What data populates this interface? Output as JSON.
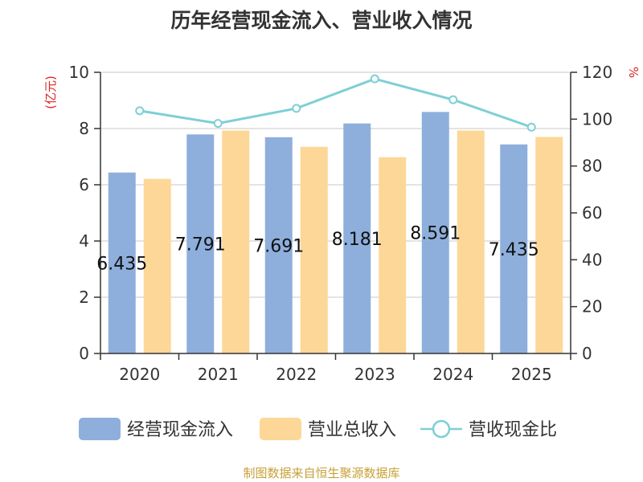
{
  "title": "历年经营现金流入、营业收入情况",
  "source": "制图数据来自恒生聚源数据库",
  "colors": {
    "cash_inflow": "#8eafdc",
    "revenue": "#fdd797",
    "ratio": "#7ecfd6",
    "unit": "#e02020",
    "grid": "#c8c8c8",
    "axis": "#333333"
  },
  "chart_data": {
    "type": "bar",
    "title": "历年经营现金流入、营业收入情况",
    "categories": [
      "2020",
      "2021",
      "2022",
      "2023",
      "2024",
      "2025"
    ],
    "left_axis": {
      "label": "(亿元)",
      "ylim": [
        0,
        10
      ],
      "ticks": [
        "0",
        "2",
        "4",
        "6",
        "8",
        "10"
      ]
    },
    "right_axis": {
      "label": "%",
      "ylim": [
        0,
        120
      ],
      "ticks": [
        "0",
        "20",
        "40",
        "60",
        "80",
        "100",
        "120"
      ]
    },
    "grid": true,
    "legend_position": "bottom",
    "series": [
      {
        "key": "cash_inflow",
        "name": "经营现金流入",
        "type": "bar",
        "axis": "left",
        "values": [
          6.435,
          7.791,
          7.691,
          8.181,
          8.591,
          7.435
        ],
        "labels": [
          "6.435",
          "7.791",
          "7.691",
          "8.181",
          "8.591",
          "7.435"
        ]
      },
      {
        "key": "revenue",
        "name": "营业总收入",
        "type": "bar",
        "axis": "left",
        "values": [
          6.21,
          7.93,
          7.35,
          6.98,
          7.93,
          7.7
        ]
      },
      {
        "key": "ratio",
        "name": "营收现金比",
        "type": "line",
        "axis": "right",
        "values": [
          103.6,
          98.2,
          104.6,
          117.2,
          108.3,
          96.6
        ]
      }
    ]
  }
}
